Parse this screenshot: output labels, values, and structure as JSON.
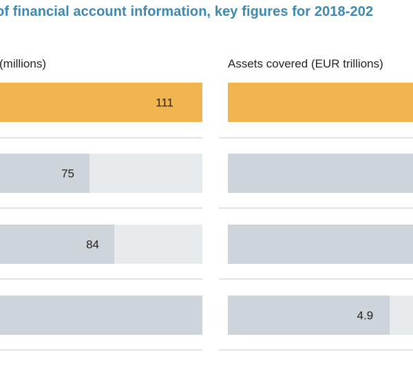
{
  "title": "of financial account information, key figures for 2018-202",
  "panels": [
    {
      "label": "(millions)"
    },
    {
      "label": "Assets covered (EUR trillions)"
    }
  ],
  "colors": {
    "highlight": "#f0b54e",
    "bar": "#cdd4da",
    "track": "#e8ebee",
    "divider": "#c3c7cb",
    "title": "#3d87b3"
  },
  "chart_data": [
    {
      "type": "bar",
      "title": "(millions)",
      "values": [
        111,
        75,
        84,
        null
      ],
      "labels": [
        "111",
        "75",
        "84",
        ""
      ],
      "highlight_index": 0
    },
    {
      "type": "bar",
      "title": "Assets covered (EUR trillions)",
      "values": [
        null,
        null,
        null,
        4.9
      ],
      "labels": [
        "",
        "",
        "",
        "4.9"
      ],
      "highlight_index": 0
    }
  ]
}
